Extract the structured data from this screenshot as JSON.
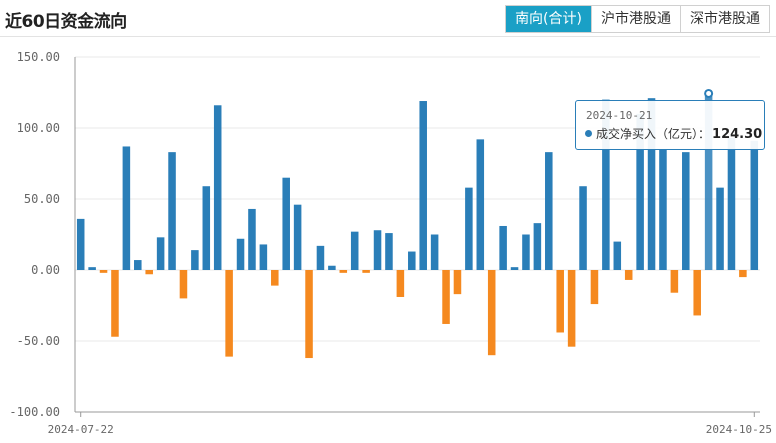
{
  "header": {
    "title": "近60日资金流向",
    "tabs": [
      {
        "label": "南向(合计)",
        "active": true
      },
      {
        "label": "沪市港股通",
        "active": false
      },
      {
        "label": "深市港股通",
        "active": false
      }
    ]
  },
  "colors": {
    "positive": "#2a7eb8",
    "negative": "#f5891f",
    "tab_active": "#1aa0c6"
  },
  "chart_data": {
    "type": "bar",
    "series": [
      {
        "name": "成交净买入（亿元）"
      }
    ],
    "ylim": [
      -100,
      150
    ],
    "yticks": [
      "150.00",
      "100.00",
      "50.00",
      "0.00",
      "-50.00",
      "-100.00"
    ],
    "x_start": "2024-07-22",
    "x_end": "2024-10-25",
    "values": [
      36,
      2,
      -2,
      -47,
      87,
      7,
      -3,
      23,
      83,
      -20,
      14,
      59,
      116,
      -61,
      22,
      43,
      18,
      -11,
      65,
      46,
      -62,
      17,
      3,
      -2,
      27,
      -2,
      28,
      26,
      -19,
      13,
      119,
      25,
      -38,
      -17,
      58,
      92,
      -60,
      31,
      2,
      25,
      33,
      83,
      -44,
      -54,
      59,
      -24,
      120,
      20,
      -7,
      110,
      121,
      85,
      -16,
      83,
      -32,
      124.3,
      58,
      93,
      -5,
      91
    ],
    "highlight_index": 55,
    "tooltip": {
      "date": "2024-10-21",
      "label": "成交净买入（亿元）",
      "value": "124.30"
    }
  }
}
